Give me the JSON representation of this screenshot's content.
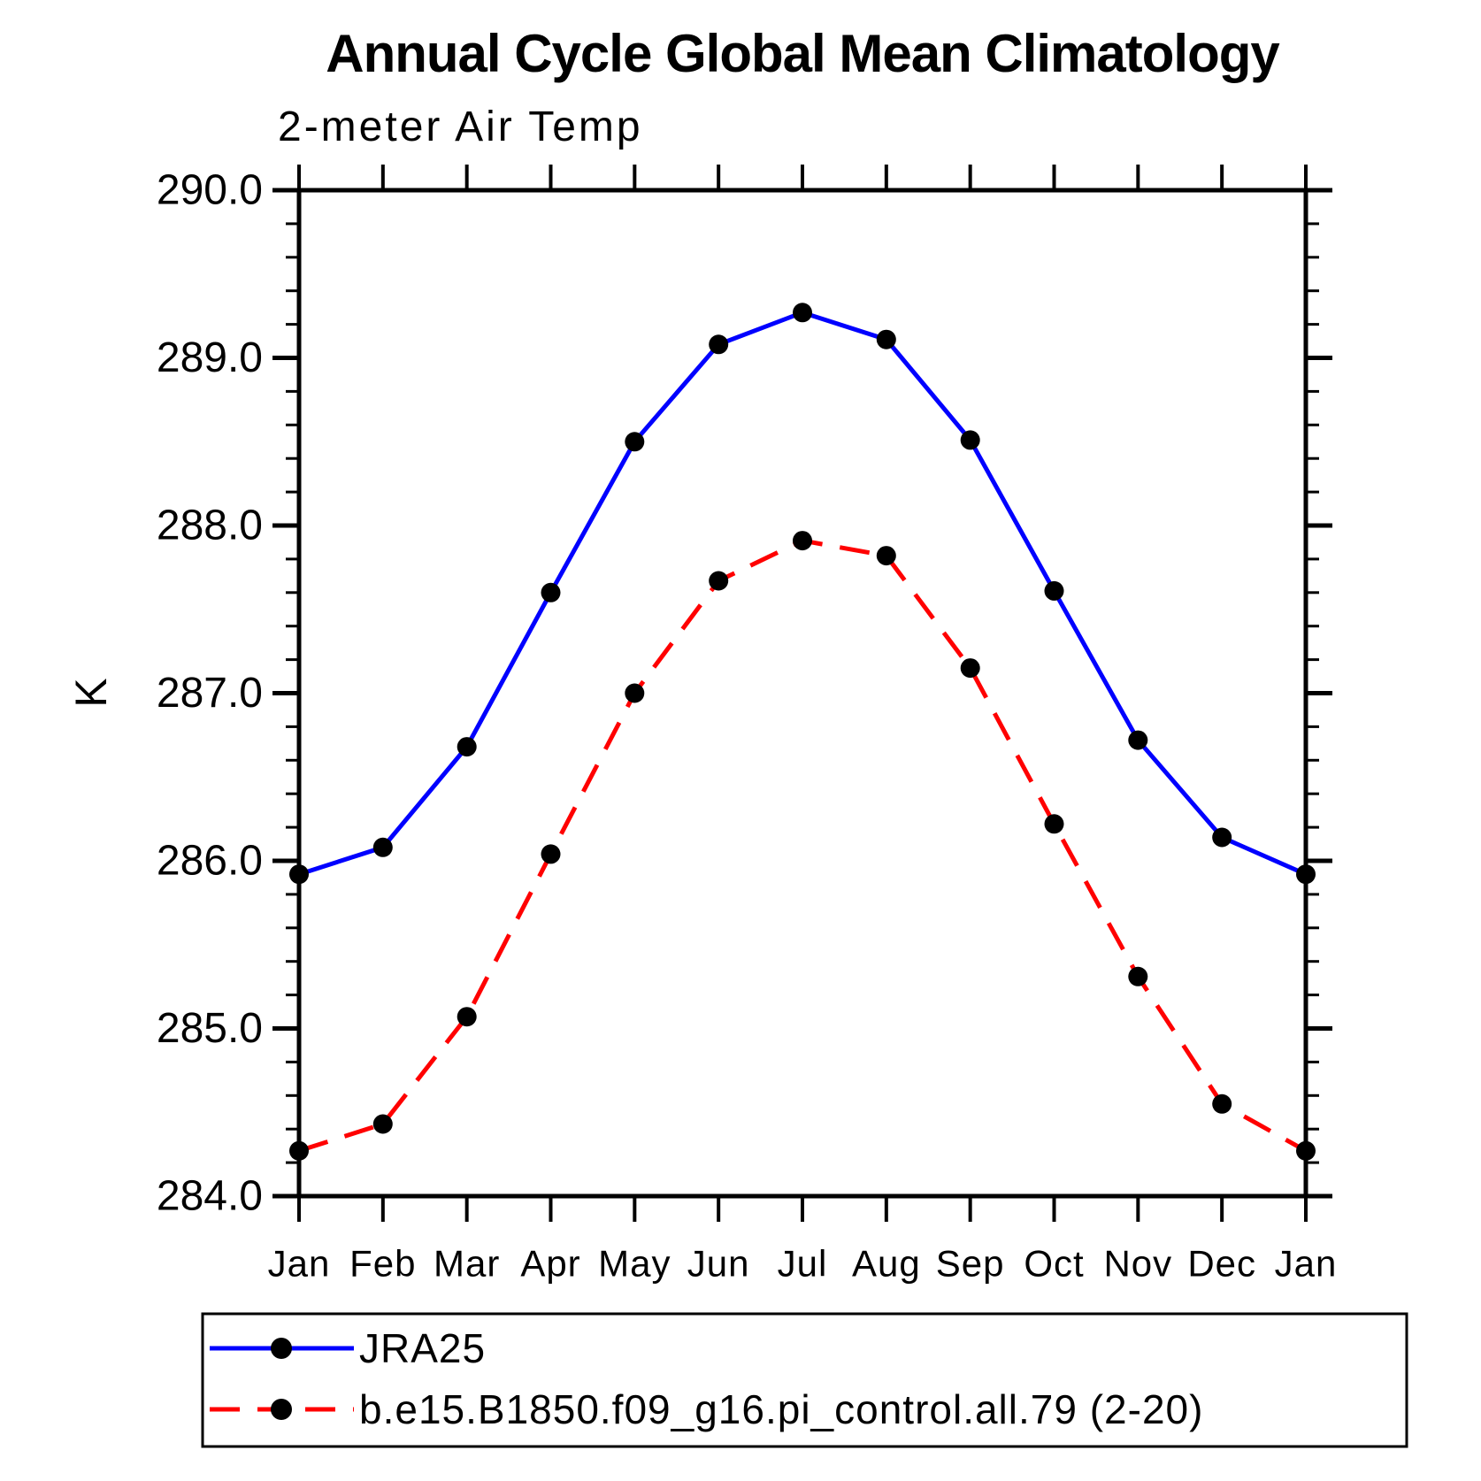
{
  "page": {
    "background": "#ffffff"
  },
  "chart_data": {
    "type": "line",
    "title": "Annual Cycle Global Mean Climatology",
    "subtitle": "2-meter Air Temp",
    "xlabel": "",
    "ylabel": "K",
    "x_categories": [
      "Jan",
      "Feb",
      "Mar",
      "Apr",
      "May",
      "Jun",
      "Jul",
      "Aug",
      "Sep",
      "Oct",
      "Nov",
      "Dec",
      "Jan"
    ],
    "ylim": [
      284.0,
      290.0
    ],
    "yticks": [
      284.0,
      285.0,
      286.0,
      287.0,
      288.0,
      289.0,
      290.0
    ],
    "ytick_labels": [
      "284.0",
      "285.0",
      "286.0",
      "287.0",
      "288.0",
      "289.0",
      "290.0"
    ],
    "ytick_minor_interval": 0.2,
    "grid": false,
    "axis_color": "#000000",
    "legend_position": "bottom-left",
    "series": [
      {
        "name": "JRA25",
        "color": "#0000ff",
        "line_style": "solid",
        "marker": "circle",
        "marker_color": "#000000",
        "values": [
          285.92,
          286.08,
          286.68,
          287.6,
          288.5,
          289.08,
          289.27,
          289.11,
          288.51,
          287.61,
          286.72,
          286.14,
          285.92
        ]
      },
      {
        "name": "b.e15.B1850.f09_g16.pi_control.all.79 (2-20)",
        "color": "#ff0000",
        "line_style": "dashed",
        "marker": "circle",
        "marker_color": "#000000",
        "values": [
          284.27,
          284.43,
          285.07,
          286.04,
          287.0,
          287.67,
          287.91,
          287.82,
          287.15,
          286.22,
          285.31,
          284.55,
          284.27
        ]
      }
    ]
  }
}
